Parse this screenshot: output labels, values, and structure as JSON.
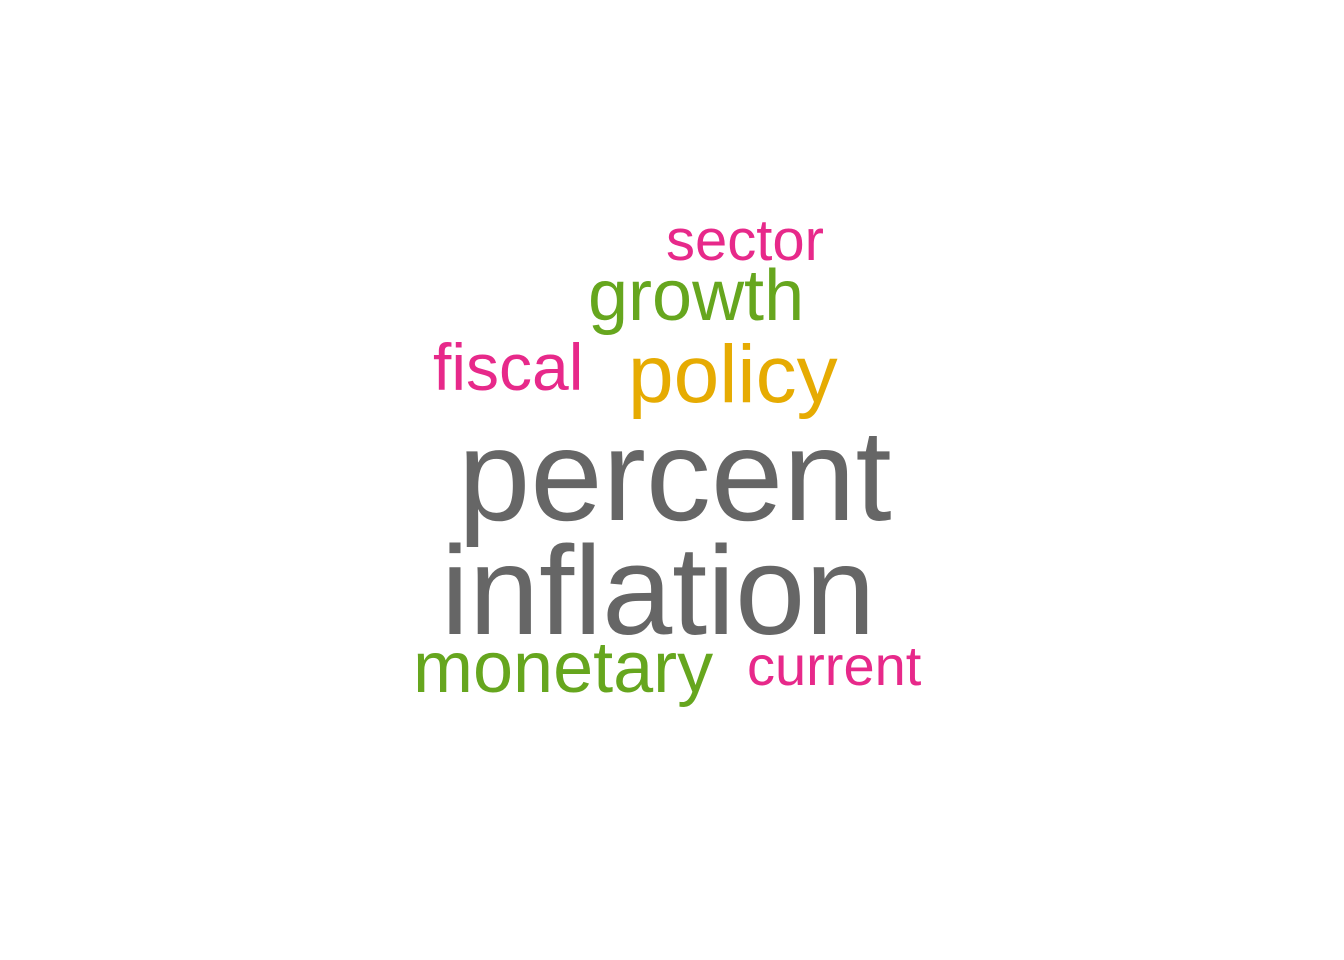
{
  "palette": {
    "gray": "#666666",
    "pink": "#e7298a",
    "green": "#66a61e",
    "gold": "#e6ab02"
  },
  "words": [
    {
      "key": "sector",
      "text": "sector",
      "color": "#e7298a"
    },
    {
      "key": "growth",
      "text": "growth",
      "color": "#66a61e"
    },
    {
      "key": "fiscal",
      "text": "fiscal",
      "color": "#e7298a"
    },
    {
      "key": "policy",
      "text": "policy",
      "color": "#e6ab02"
    },
    {
      "key": "percent",
      "text": "percent",
      "color": "#666666"
    },
    {
      "key": "inflation",
      "text": "inflation",
      "color": "#666666"
    },
    {
      "key": "monetary",
      "text": "monetary",
      "color": "#66a61e"
    },
    {
      "key": "current",
      "text": "current",
      "color": "#e7298a"
    }
  ]
}
